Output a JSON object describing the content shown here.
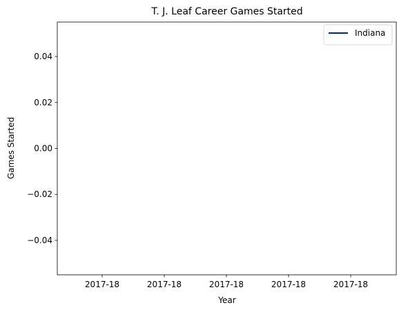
{
  "chart_data": {
    "type": "line",
    "title": "T. J. Leaf Career Games Started",
    "xlabel": "Year",
    "ylabel": "Games Started",
    "x_tick_labels": [
      "2017-18",
      "2017-18",
      "2017-18",
      "2017-18",
      "2017-18"
    ],
    "y_ticks": [
      -0.04,
      -0.02,
      0.0,
      0.02,
      0.04
    ],
    "y_tick_labels": [
      "−0.04",
      "−0.02",
      "0.00",
      "0.02",
      "0.04"
    ],
    "ylim": [
      -0.055,
      0.055
    ],
    "grid": false,
    "legend_position": "top-right",
    "series": [
      {
        "name": "Indiana",
        "color": "#002d62",
        "x": [],
        "y": []
      }
    ]
  }
}
